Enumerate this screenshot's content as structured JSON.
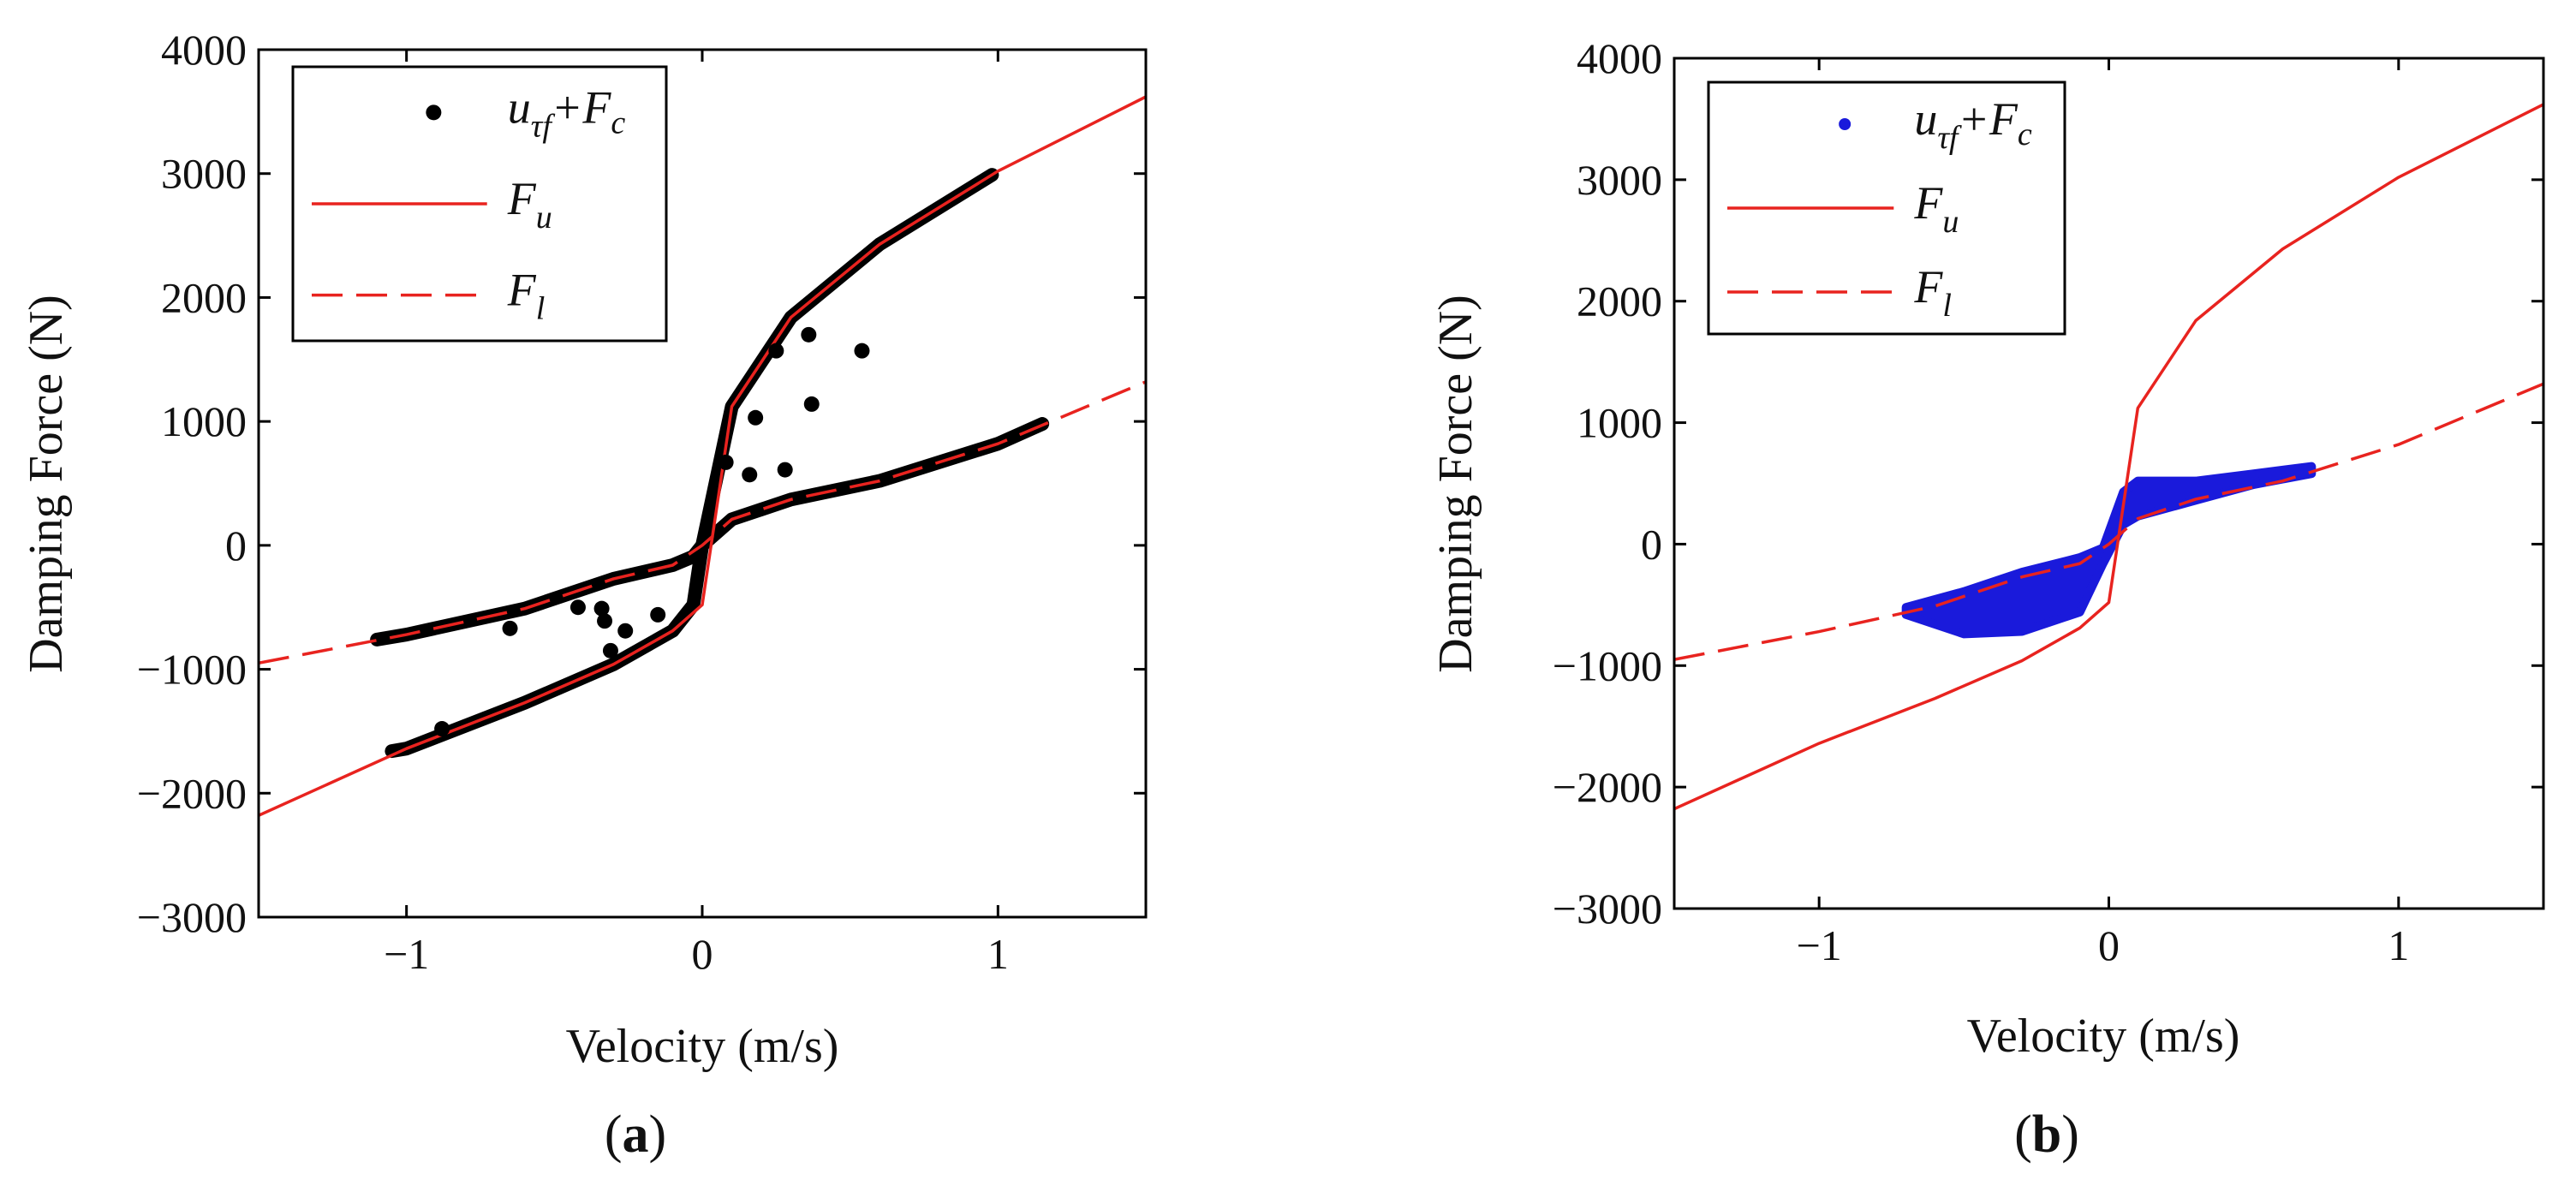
{
  "chart_data": [
    {
      "type": "line",
      "panel_label": "a",
      "xlabel": "Velocity (m/s)",
      "ylabel": "Damping Force (N)",
      "xlim": [
        -1.5,
        1.5
      ],
      "ylim": [
        -3000,
        4000
      ],
      "xticks": [
        -1,
        0,
        1
      ],
      "xtick_labels": [
        "−1",
        "0",
        "1"
      ],
      "yticks": [
        -3000,
        -2000,
        -1000,
        0,
        1000,
        2000,
        3000,
        4000
      ],
      "ytick_labels": [
        "−3000",
        "−2000",
        "−1000",
        "0",
        "1000",
        "2000",
        "3000",
        "4000"
      ],
      "grid": false,
      "legend_position": "top-left",
      "legend": [
        {
          "series": "scatter",
          "main": "u",
          "sub1": "τf",
          "plus": "+F",
          "sub2": "c"
        },
        {
          "series": "Fu",
          "main": "F",
          "sub": "u"
        },
        {
          "series": "Fl",
          "main": "F",
          "sub": "l"
        }
      ],
      "scatter_color": "#000000",
      "series": [
        {
          "name": "Fu",
          "style": "solid",
          "color": "#e8231f",
          "x": [
            -1.5,
            -1.0,
            -0.6,
            -0.3,
            -0.1,
            0,
            0.1,
            0.3,
            0.6,
            1.0,
            1.5
          ],
          "y": [
            -2180,
            -1640,
            -1270,
            -960,
            -690,
            -480,
            1120,
            1840,
            2430,
            3020,
            3620
          ]
        },
        {
          "name": "Fl",
          "style": "dashed",
          "color": "#e8231f",
          "x": [
            -1.5,
            -1.0,
            -0.6,
            -0.3,
            -0.1,
            0,
            0.1,
            0.3,
            0.6,
            1.0,
            1.5
          ],
          "y": [
            -950,
            -720,
            -510,
            -270,
            -160,
            0,
            210,
            370,
            520,
            820,
            1320
          ]
        }
      ],
      "tracks": [
        {
          "name": "upper-track",
          "x": [
            -1.05,
            -1.0,
            -0.6,
            -0.3,
            -0.1,
            -0.03,
            0,
            0.1,
            0.3,
            0.6,
            0.98
          ],
          "y": [
            -1660,
            -1640,
            -1270,
            -960,
            -690,
            -480,
            0,
            1120,
            1840,
            2430,
            2990
          ]
        },
        {
          "name": "lower-track",
          "x": [
            -1.1,
            -1.0,
            -0.6,
            -0.3,
            -0.1,
            -0.03,
            0,
            0.1,
            0.3,
            0.6,
            1.0,
            1.15
          ],
          "y": [
            -760,
            -720,
            -510,
            -270,
            -160,
            -90,
            0,
            210,
            370,
            520,
            820,
            980
          ]
        }
      ],
      "scatter": {
        "x": [
          -0.65,
          -0.42,
          -0.34,
          -0.33,
          -0.31,
          -0.26,
          -0.15,
          0.08,
          0.16,
          0.18,
          0.25,
          0.28,
          0.36,
          0.37,
          0.54,
          -0.88
        ],
        "y": [
          -670,
          -500,
          -510,
          -610,
          -850,
          -690,
          -560,
          670,
          570,
          1030,
          1570,
          610,
          1700,
          1140,
          1570,
          -1480
        ]
      }
    },
    {
      "type": "line",
      "panel_label": "b",
      "xlabel": "Velocity (m/s)",
      "ylabel": "Damping Force (N)",
      "xlim": [
        -1.5,
        1.5
      ],
      "ylim": [
        -3000,
        4000
      ],
      "xticks": [
        -1,
        0,
        1
      ],
      "xtick_labels": [
        "−1",
        "0",
        "1"
      ],
      "yticks": [
        -3000,
        -2000,
        -1000,
        0,
        1000,
        2000,
        3000,
        4000
      ],
      "ytick_labels": [
        "−3000",
        "−2000",
        "−1000",
        "0",
        "1000",
        "2000",
        "3000",
        "4000"
      ],
      "grid": false,
      "legend_position": "top-left",
      "legend": [
        {
          "series": "scatter",
          "main": "u",
          "sub1": "τf",
          "plus": "+F",
          "sub2": "c"
        },
        {
          "series": "Fu",
          "main": "F",
          "sub": "u"
        },
        {
          "series": "Fl",
          "main": "F",
          "sub": "l"
        }
      ],
      "scatter_color": "#1a1adb",
      "series": [
        {
          "name": "Fu",
          "style": "solid",
          "color": "#e8231f",
          "x": [
            -1.5,
            -1.0,
            -0.6,
            -0.3,
            -0.1,
            0,
            0.1,
            0.3,
            0.6,
            1.0,
            1.5
          ],
          "y": [
            -2180,
            -1640,
            -1270,
            -960,
            -690,
            -480,
            1120,
            1840,
            2430,
            3020,
            3620
          ]
        },
        {
          "name": "Fl",
          "style": "dashed",
          "color": "#e8231f",
          "x": [
            -1.5,
            -1.0,
            -0.6,
            -0.3,
            -0.1,
            0,
            0.1,
            0.3,
            0.6,
            1.0,
            1.5
          ],
          "y": [
            -950,
            -720,
            -510,
            -270,
            -160,
            0,
            210,
            370,
            520,
            820,
            1320
          ]
        }
      ],
      "tracks": [],
      "cloud": {
        "x_range": [
          -0.7,
          0.7
        ],
        "upper_edge": [
          [
            -0.7,
            -520
          ],
          [
            -0.5,
            -390
          ],
          [
            -0.3,
            -230
          ],
          [
            -0.1,
            -110
          ],
          [
            -0.02,
            -30
          ],
          [
            0.05,
            430
          ],
          [
            0.1,
            520
          ],
          [
            0.3,
            520
          ],
          [
            0.5,
            580
          ],
          [
            0.7,
            640
          ]
        ],
        "lower_edge": [
          [
            -0.7,
            -580
          ],
          [
            -0.5,
            -740
          ],
          [
            -0.3,
            -720
          ],
          [
            -0.1,
            -560
          ],
          [
            -0.02,
            -160
          ],
          [
            0.05,
            160
          ],
          [
            0.1,
            230
          ],
          [
            0.3,
            360
          ],
          [
            0.5,
            490
          ],
          [
            0.7,
            580
          ]
        ]
      }
    }
  ]
}
